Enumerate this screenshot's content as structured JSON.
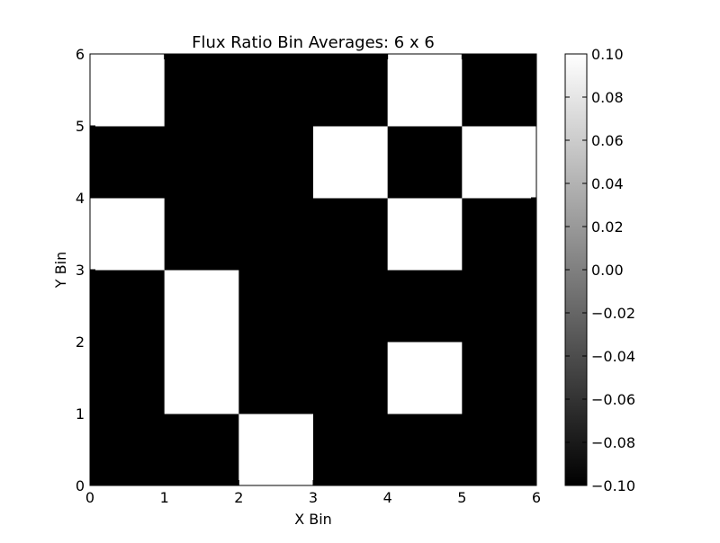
{
  "chart_data": {
    "type": "heatmap",
    "title": "Flux Ratio Bin Averages: 6 x 6",
    "xlabel": "X Bin",
    "ylabel": "Y Bin",
    "xlim": [
      0,
      6
    ],
    "ylim": [
      0,
      6
    ],
    "x_ticks": [
      "0",
      "1",
      "2",
      "3",
      "4",
      "5",
      "6"
    ],
    "y_ticks": [
      "0",
      "1",
      "2",
      "3",
      "4",
      "5",
      "6"
    ],
    "colormap": "gray",
    "value_range": [
      -0.1,
      0.1
    ],
    "colorbar_ticks": [
      "−0.10",
      "−0.08",
      "−0.06",
      "−0.04",
      "−0.02",
      "0.00",
      "0.02",
      "0.04",
      "0.06",
      "0.08",
      "0.10"
    ],
    "rows_bottom_to_top": [
      [
        -0.1,
        -0.1,
        0.1,
        -0.1,
        -0.1,
        -0.1
      ],
      [
        -0.1,
        0.1,
        -0.1,
        -0.1,
        0.1,
        -0.1
      ],
      [
        -0.1,
        0.1,
        -0.1,
        -0.1,
        -0.1,
        -0.1
      ],
      [
        0.1,
        -0.1,
        -0.1,
        -0.1,
        0.1,
        -0.1
      ],
      [
        -0.1,
        -0.1,
        -0.1,
        0.1,
        -0.1,
        0.1
      ],
      [
        0.1,
        -0.1,
        -0.1,
        -0.1,
        0.1,
        -0.1
      ]
    ]
  }
}
